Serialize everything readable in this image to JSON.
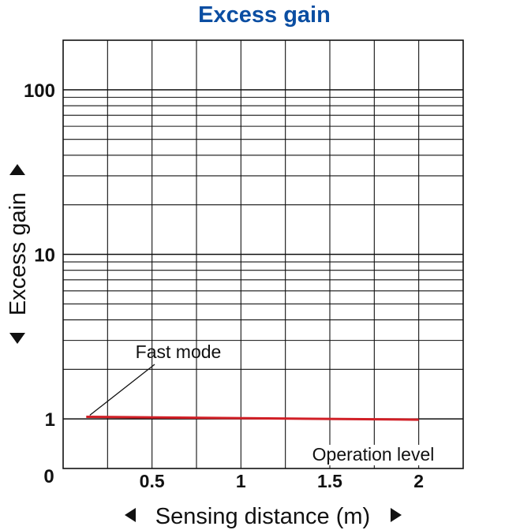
{
  "chart_data": {
    "type": "line",
    "title": "Excess gain",
    "xlabel": "Sensing distance (m)",
    "ylabel": "Excess gain",
    "x_scale": "linear",
    "y_scale": "log",
    "xlim": [
      0,
      2.25
    ],
    "ylim": [
      0.5,
      200
    ],
    "x_ticks": [
      {
        "value": 0.5,
        "label": "0.5"
      },
      {
        "value": 1,
        "label": "1"
      },
      {
        "value": 1.5,
        "label": "1.5"
      },
      {
        "value": 2,
        "label": "2"
      }
    ],
    "origin_label": "0",
    "y_ticks": [
      {
        "value": 1,
        "label": "1"
      },
      {
        "value": 10,
        "label": "10"
      },
      {
        "value": 100,
        "label": "100"
      }
    ],
    "grid": true,
    "series": [
      {
        "name": "Fast mode",
        "color": "#d11f26",
        "x": [
          0.13,
          2.0
        ],
        "y": [
          1.03,
          0.99
        ]
      }
    ],
    "annotations": [
      {
        "text": "Fast mode",
        "points_to": {
          "x": 0.15,
          "y": 1.03
        }
      },
      {
        "text": "Operation level",
        "at": {
          "x": 1.75,
          "y": 1
        }
      }
    ],
    "reference_line": {
      "y": 1,
      "label": "Operation level"
    }
  }
}
